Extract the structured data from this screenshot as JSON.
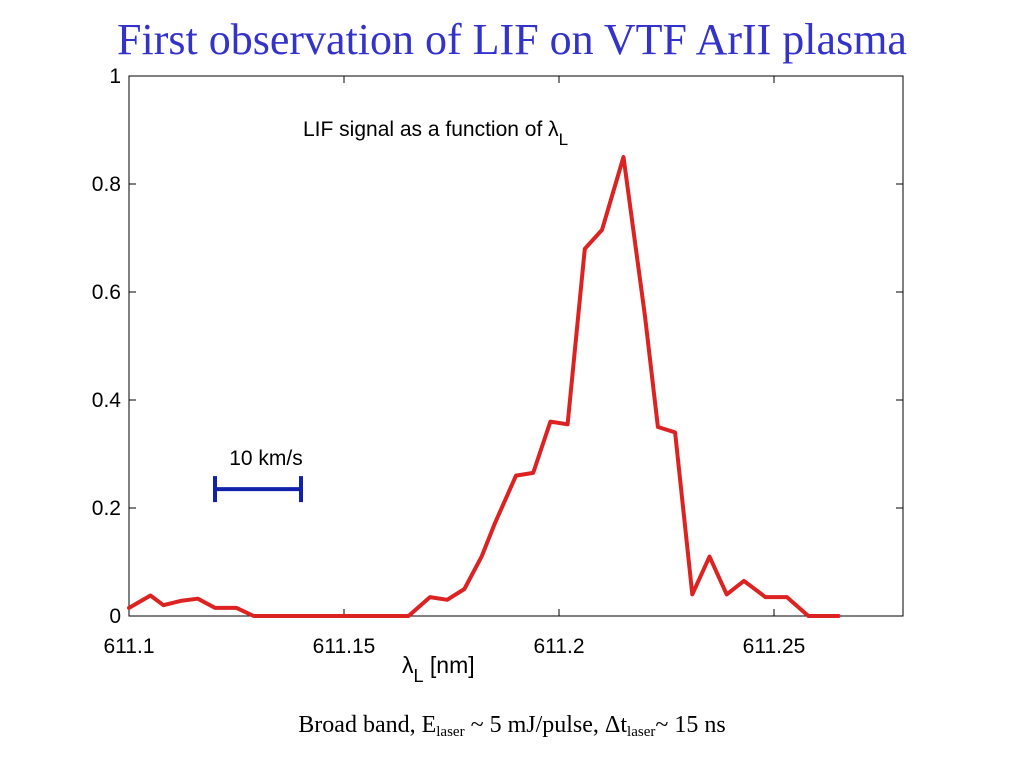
{
  "slide": {
    "title": "First observation of LIF on VTF ArII plasma"
  },
  "caption": {
    "part1": "Broad band, E",
    "sub1": "laser",
    "part2": " ~ 5 mJ/pulse, ",
    "delta": "Δt",
    "sub2": "laser",
    "part3": "~ 15 ns"
  },
  "chart_data": {
    "type": "line",
    "title": "LIF signal as a function of λL",
    "title_main": "LIF signal as a function of λ",
    "title_sub": "L",
    "xlabel_symbol": "λ",
    "xlabel_sub": "L",
    "xlabel_unit": " [nm]",
    "xlim": [
      611.1,
      611.28
    ],
    "ylim": [
      0,
      1
    ],
    "xticks": [
      611.1,
      611.15,
      611.2,
      611.25
    ],
    "xtick_labels": [
      "611.1",
      "611.15",
      "611.2",
      "611.25"
    ],
    "yticks": [
      0,
      0.2,
      0.4,
      0.6,
      0.8,
      1
    ],
    "ytick_labels": [
      "0",
      "0.2",
      "0.4",
      "0.6",
      "0.8",
      "1"
    ],
    "grid": false,
    "series_color": "#dd2222",
    "series": [
      {
        "name": "",
        "x": [
          611.1,
          611.105,
          611.108,
          611.112,
          611.116,
          611.12,
          611.125,
          611.129,
          611.135,
          611.14,
          611.145,
          611.15,
          611.155,
          611.16,
          611.165,
          611.17,
          611.174,
          611.178,
          611.182,
          611.185,
          611.19,
          611.194,
          611.198,
          611.202,
          611.206,
          611.21,
          611.215,
          611.22,
          611.223,
          611.227,
          611.231,
          611.235,
          611.239,
          611.243,
          611.248,
          611.253,
          611.258,
          611.265
        ],
        "y": [
          0.015,
          0.038,
          0.02,
          0.028,
          0.032,
          0.015,
          0.015,
          0.0,
          0.0,
          0.0,
          0.0,
          0.0,
          0.0,
          0.0,
          0.0,
          0.035,
          0.03,
          0.05,
          0.11,
          0.17,
          0.26,
          0.265,
          0.36,
          0.355,
          0.68,
          0.715,
          0.85,
          0.555,
          0.35,
          0.34,
          0.04,
          0.11,
          0.04,
          0.065,
          0.035,
          0.035,
          0.0,
          0.0
        ]
      }
    ],
    "scale_bar": {
      "label": "10 km/s",
      "x_start": 611.12,
      "x_end": 611.14,
      "y": 0.235,
      "color": "#1122aa"
    }
  }
}
